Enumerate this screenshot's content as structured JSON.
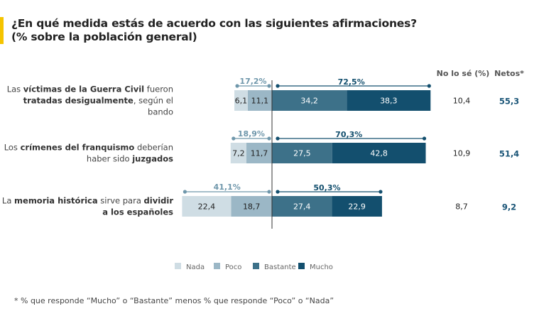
{
  "title_line1": "¿En qué medida estás de acuerdo con las siguientes afirmaciones?",
  "title_line2": "(% sobre la población general)",
  "footnote": "* % que responde “Mucho” o “Bastante” menos % que responde “Poco” o “Nada”",
  "chart_data": {
    "type": "bar",
    "orientation": "horizontal",
    "stacking": "diverging",
    "columns": {
      "dont_know": "No lo sé (%)",
      "net": "Netos*"
    },
    "legend": [
      "Nada",
      "Poco",
      "Bastante",
      "Mucho"
    ],
    "legend_placement": "bottom",
    "colors": {
      "Nada": "#cfdde4",
      "Poco": "#9bb7c6",
      "Bastante": "#3d7189",
      "Mucho": "#134f6e",
      "accent": "#f5c400",
      "net": "#1a5577"
    },
    "categories": [
      {
        "label": [
          {
            "t": "Las ",
            "b": false
          },
          {
            "t": "víctimas de la Guerra Civil",
            "b": true
          },
          {
            "t": " fueron",
            "b": false
          },
          {
            "br": true
          },
          {
            "t": "tratadas desigualmente",
            "b": true
          },
          {
            "t": ", según el",
            "b": false
          },
          {
            "br": true
          },
          {
            "t": "bando",
            "b": false
          }
        ],
        "Nada": 6.1,
        "Poco": 11.1,
        "Bastante": 34.2,
        "Mucho": 38.3,
        "neg_total": "17,2%",
        "pos_total": "72,5%",
        "dont_know": "10,4",
        "net": "55,3"
      },
      {
        "label": [
          {
            "t": "Los ",
            "b": false
          },
          {
            "t": "crímenes del franquismo",
            "b": true
          },
          {
            "t": " deberían",
            "b": false
          },
          {
            "br": true
          },
          {
            "t": "haber sido ",
            "b": false
          },
          {
            "t": "juzgados",
            "b": true
          }
        ],
        "Nada": 7.2,
        "Poco": 11.7,
        "Bastante": 27.5,
        "Mucho": 42.8,
        "neg_total": "18,9%",
        "pos_total": "70,3%",
        "dont_know": "10,9",
        "net": "51,4"
      },
      {
        "label": [
          {
            "t": "La ",
            "b": false
          },
          {
            "t": "memoria histórica",
            "b": true
          },
          {
            "t": " sirve para ",
            "b": false
          },
          {
            "t": "dividir",
            "b": true
          },
          {
            "br": true
          },
          {
            "t": "a los españoles",
            "b": true
          }
        ],
        "Nada": 22.4,
        "Poco": 18.7,
        "Bastante": 27.4,
        "Mucho": 22.9,
        "neg_total": "41,1%",
        "pos_total": "50,3%",
        "dont_know": "8,7",
        "net": "9,2"
      }
    ]
  }
}
